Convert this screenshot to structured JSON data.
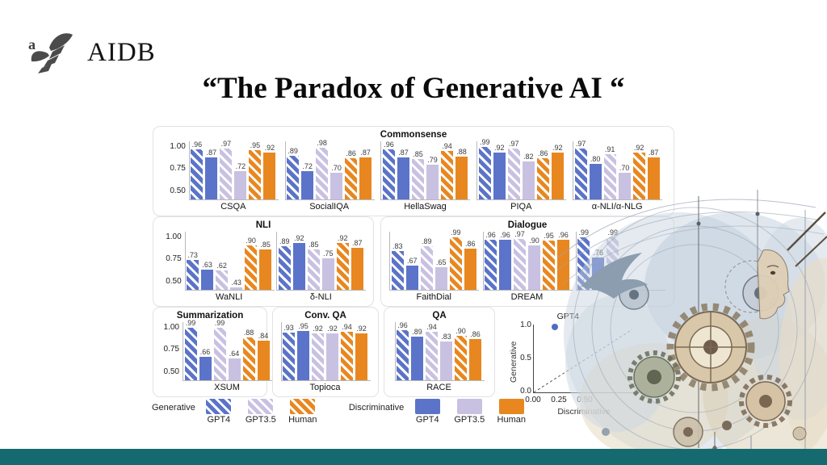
{
  "slide": {
    "logo_text": "AIDB",
    "title": "“The Paradox of Generative AI “"
  },
  "colors": {
    "gpt4": "#5b74c9",
    "gpt35": "#c9c1e2",
    "human": "#e8871f",
    "panel_border": "#e2e2e6",
    "footer_bar": "#156a70"
  },
  "legend": {
    "generative_label": "Generative",
    "discriminative_label": "Discriminative",
    "entries": [
      "GPT4",
      "GPT3.5",
      "Human"
    ]
  },
  "chart_data": [
    {
      "type": "bar",
      "ylim": [
        0.4,
        1.05
      ],
      "yticks": [
        "1.00",
        "0.75",
        "0.50"
      ],
      "series": [
        {
          "name": "GPT4",
          "mode": "Generative",
          "style": "hatched",
          "color_key": "gpt4"
        },
        {
          "name": "GPT4",
          "mode": "Discriminative",
          "style": "solid",
          "color_key": "gpt4"
        },
        {
          "name": "GPT3.5",
          "mode": "Generative",
          "style": "hatched",
          "color_key": "gpt35"
        },
        {
          "name": "GPT3.5",
          "mode": "Discriminative",
          "style": "solid",
          "color_key": "gpt35"
        },
        {
          "name": "Human",
          "mode": "Generative",
          "style": "hatched",
          "color_key": "human"
        },
        {
          "name": "Human",
          "mode": "Discriminative",
          "style": "solid",
          "color_key": "human"
        }
      ],
      "groups": [
        {
          "title": "Commonsense",
          "charts": [
            {
              "name": "CSQA",
              "show_yticks": true,
              "values": [
                0.96,
                0.87,
                0.97,
                0.72,
                0.95,
                0.92
              ]
            },
            {
              "name": "SocialIQA",
              "values": [
                0.89,
                0.72,
                0.98,
                0.7,
                0.86,
                0.87
              ]
            },
            {
              "name": "HellaSwag",
              "values": [
                0.96,
                0.87,
                0.85,
                0.79,
                0.94,
                0.88
              ]
            },
            {
              "name": "PIQA",
              "values": [
                0.99,
                0.92,
                0.97,
                0.82,
                0.86,
                0.92
              ]
            },
            {
              "name": "α-NLI/α-NLG",
              "values": [
                0.97,
                0.8,
                0.91,
                0.7,
                0.92,
                0.87
              ]
            }
          ]
        },
        {
          "title": "NLI",
          "charts": [
            {
              "name": "WaNLI",
              "show_yticks": true,
              "values": [
                0.73,
                0.63,
                0.62,
                0.43,
                0.9,
                0.85
              ]
            },
            {
              "name": "δ-NLI",
              "values": [
                0.89,
                0.92,
                0.85,
                0.75,
                0.92,
                0.87
              ]
            }
          ]
        },
        {
          "title": "Dialogue",
          "charts": [
            {
              "name": "FaithDial",
              "values": [
                0.83,
                0.67,
                0.89,
                0.65,
                0.99,
                0.86
              ]
            },
            {
              "name": "DREAM",
              "values": [
                0.96,
                0.96,
                0.97,
                0.9,
                0.95,
                0.96
              ]
            },
            {
              "name": "",
              "partially_hidden": true,
              "values": [
                0.99,
                0.76,
                0.99
              ]
            }
          ]
        },
        {
          "title": "Summarization",
          "charts": [
            {
              "name": "XSUM",
              "show_yticks": true,
              "values": [
                0.99,
                0.66,
                0.99,
                0.64,
                0.88,
                0.84
              ]
            }
          ]
        },
        {
          "title": "Conv. QA",
          "charts": [
            {
              "name": "Topioca",
              "values": [
                0.93,
                0.95,
                0.92,
                0.92,
                0.94,
                0.92
              ]
            }
          ]
        },
        {
          "title": "QA",
          "charts": [
            {
              "name": "RACE",
              "values": [
                0.96,
                0.89,
                0.94,
                0.83,
                0.9,
                0.86
              ]
            }
          ]
        }
      ]
    },
    {
      "type": "scatter",
      "xlabel": "Discriminative",
      "ylabel": "Generative",
      "xticks": [
        "0.00",
        "0.25",
        "0.50"
      ],
      "yticks": [
        "0.0",
        "0.5",
        "1.0"
      ],
      "xlim": [
        0,
        0.95
      ],
      "ylim": [
        0,
        1.05
      ],
      "diagonal_line": "dashed",
      "points": [
        {
          "label": "GPT4",
          "x": 0.2,
          "y": 1.0,
          "color": "#4e6bc4"
        }
      ]
    }
  ]
}
